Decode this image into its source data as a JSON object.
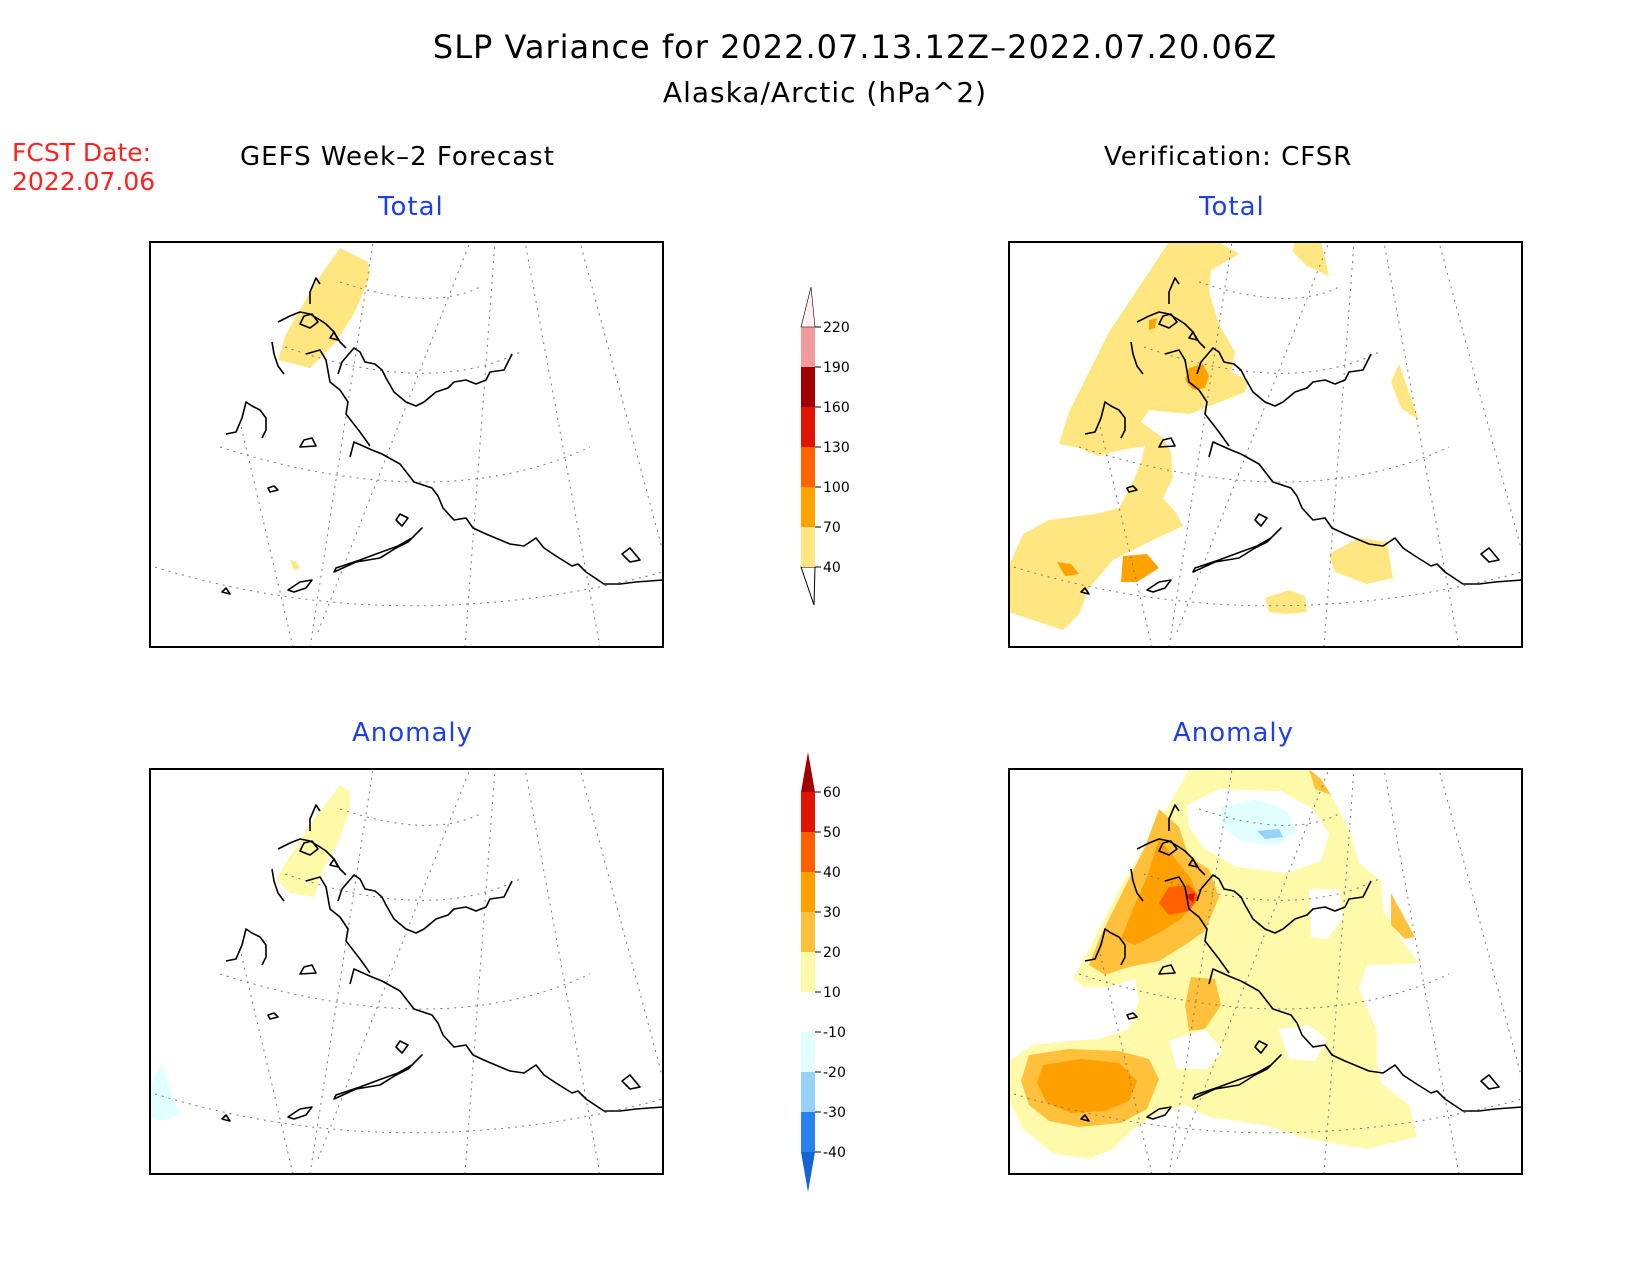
{
  "header": {
    "title": "SLP Variance for 2022.07.13.12Z–2022.07.20.06Z",
    "subtitle": "Alaska/Arctic (hPa^2)"
  },
  "forecast_date": {
    "label": "FCST Date:",
    "value": "2022.07.06"
  },
  "columns": {
    "left": "GEFS Week–2 Forecast",
    "right": "Verification: CFSR"
  },
  "panels": {
    "top_left": "Total",
    "top_right": "Total",
    "bottom_left": "Anomaly",
    "bottom_right": "Anomaly"
  },
  "colorbars": {
    "total": {
      "levels": [
        "40",
        "70",
        "100",
        "130",
        "160",
        "190",
        "220"
      ],
      "colors": [
        "#ffe680",
        "#ffa200",
        "#ff6400",
        "#e01400",
        "#a00000",
        "#f09c9c",
        "#fff0f0"
      ]
    },
    "anomaly": {
      "levels": [
        "-40",
        "-30",
        "-20",
        "-10",
        "10",
        "20",
        "30",
        "40",
        "50",
        "60"
      ],
      "colors": [
        "#1464d2",
        "#2882f0",
        "#96d2fa",
        "#e1ffff",
        "#ffffff",
        "#fffaaa",
        "#ffc03c",
        "#ffa000",
        "#ff6000",
        "#e11400",
        "#a50000"
      ]
    }
  }
}
